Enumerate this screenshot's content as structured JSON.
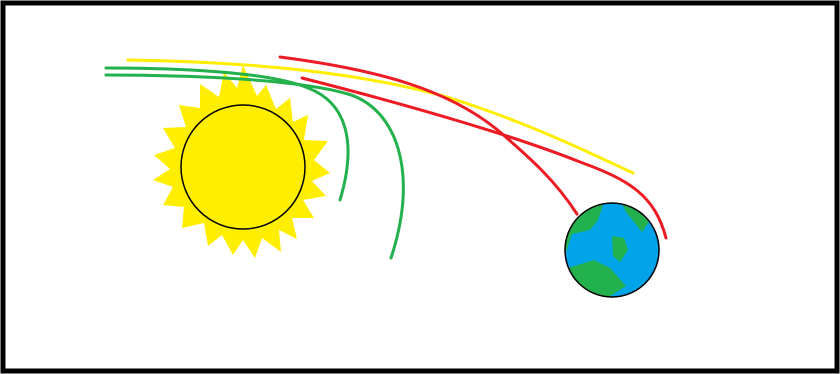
{
  "diagram": {
    "colors": {
      "background": "#ffffff",
      "frame": "#000000",
      "sun_fill": "#ffee00",
      "sun_outline": "#000000",
      "earth_ocean": "#00a2e8",
      "earth_land": "#22b14c",
      "earth_outline": "#000000",
      "path_green": "#22b14c",
      "path_yellow": "#ffee00",
      "path_red": "#ed1c24"
    },
    "objects": [
      {
        "name": "sun",
        "icon": "sun-icon"
      },
      {
        "name": "earth",
        "icon": "earth-icon"
      }
    ],
    "paths": [
      {
        "name": "green-path-inner",
        "color": "path_green"
      },
      {
        "name": "green-path-outer",
        "color": "path_green"
      },
      {
        "name": "yellow-path",
        "color": "path_yellow"
      },
      {
        "name": "red-path-upper",
        "color": "path_red"
      },
      {
        "name": "red-path-lower",
        "color": "path_red"
      }
    ]
  }
}
